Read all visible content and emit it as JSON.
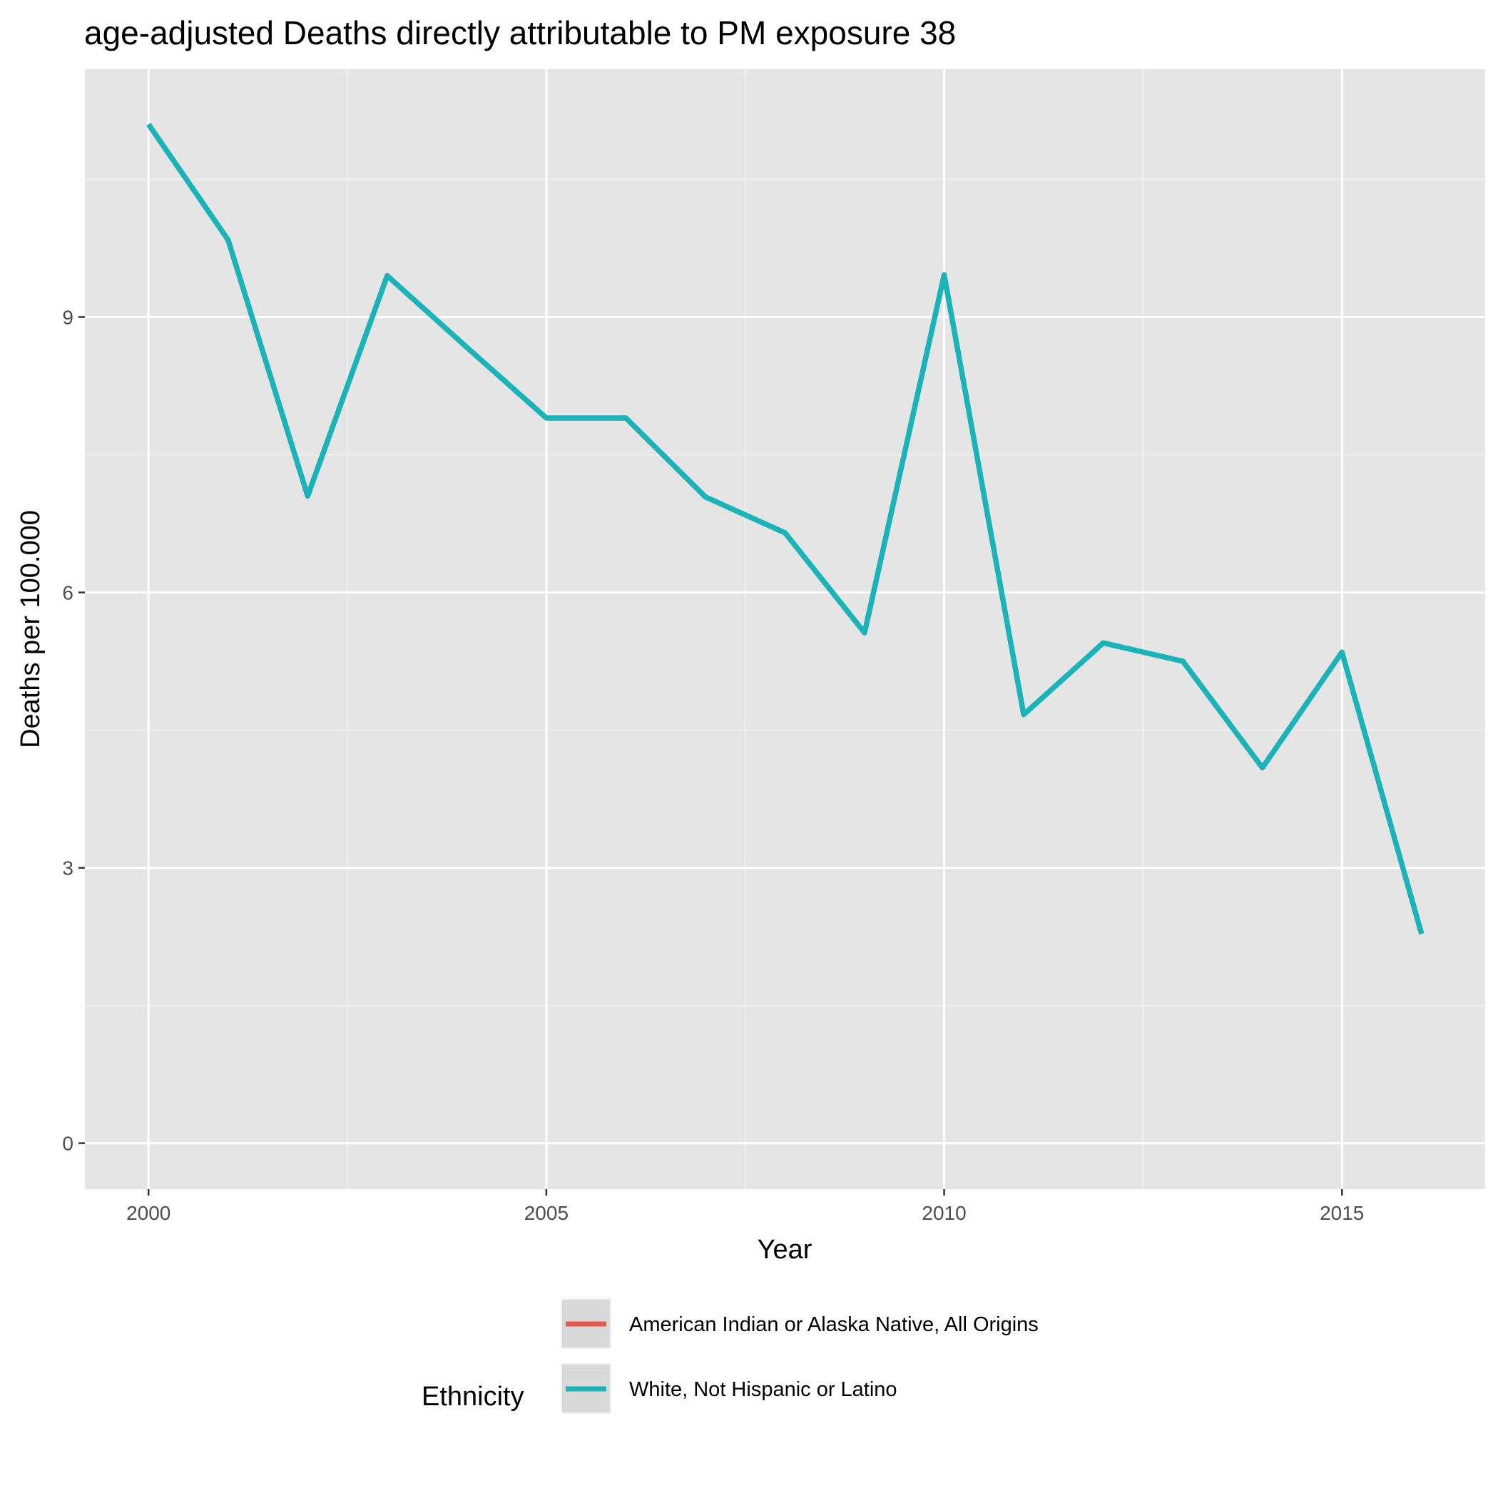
{
  "chart_data": {
    "type": "line",
    "title": "age-adjusted Deaths directly attributable to PM exposure 38",
    "xlabel": "Year",
    "ylabel": "Deaths per 100.000",
    "xlim": [
      1999.2,
      2016.8
    ],
    "ylim": [
      -0.5,
      11.7
    ],
    "x_ticks": [
      2000,
      2005,
      2010,
      2015
    ],
    "y_ticks": [
      0,
      3,
      6,
      9
    ],
    "x_tick_labels": [
      "2000",
      "2005",
      "2010",
      "2015"
    ],
    "y_tick_labels": [
      "0",
      "3",
      "6",
      "9"
    ],
    "grid": true,
    "legend": {
      "title": "Ethnicity",
      "position": "bottom",
      "entries": [
        {
          "label": "American Indian or Alaska Native, All Origins",
          "color": "#e15b4f"
        },
        {
          "label": "White, Not Hispanic or Latino",
          "color": "#1ab3b7"
        }
      ]
    },
    "series": [
      {
        "name": "White, Not Hispanic or Latino",
        "color": "#1ab3b7",
        "x": [
          2000,
          2001,
          2002,
          2003,
          2004,
          2005,
          2006,
          2007,
          2008,
          2009,
          2010,
          2011,
          2012,
          2013,
          2014,
          2015,
          2016
        ],
        "values": [
          11.1,
          9.84,
          7.05,
          9.45,
          8.67,
          7.9,
          7.9,
          7.04,
          6.65,
          5.56,
          9.46,
          4.67,
          5.45,
          5.25,
          4.09,
          5.35,
          2.28
        ]
      }
    ]
  }
}
